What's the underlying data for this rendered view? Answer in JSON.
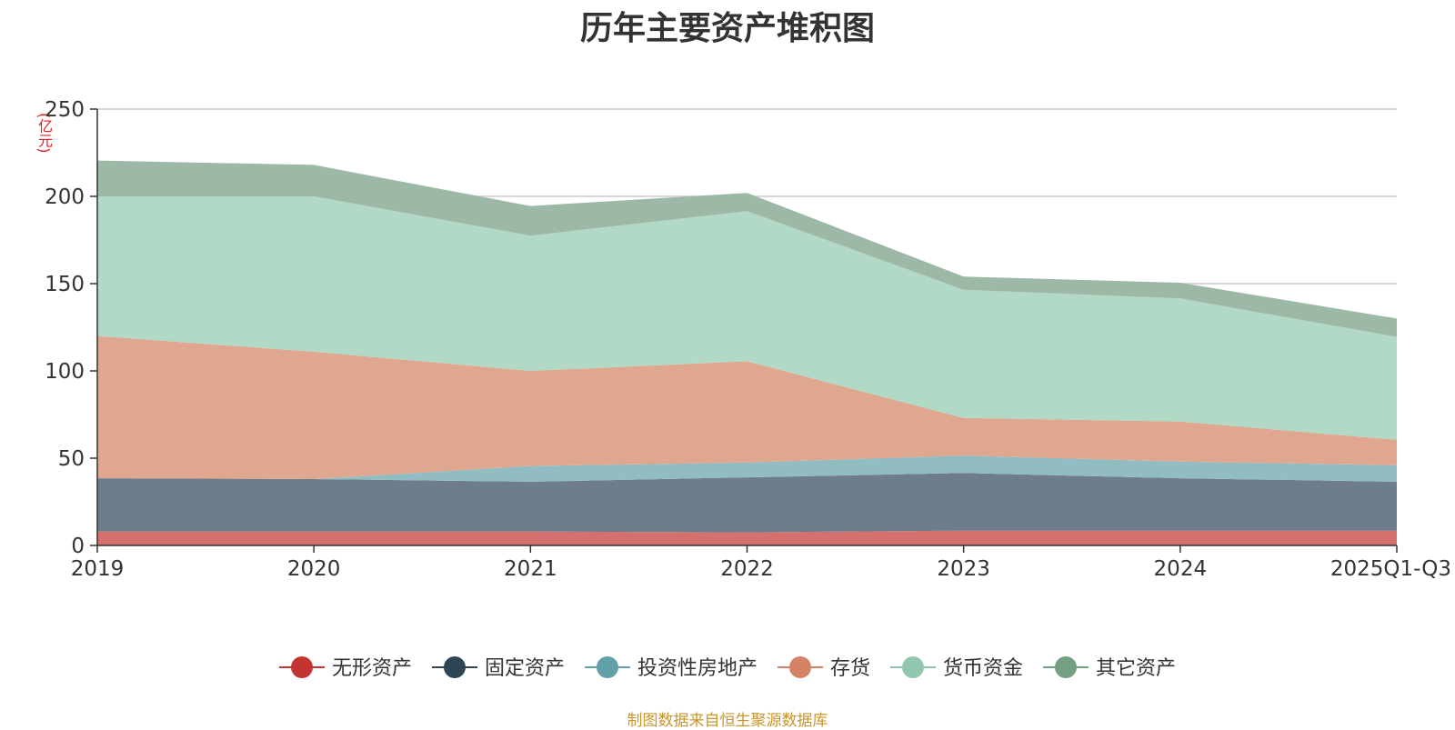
{
  "chart_data": {
    "type": "area",
    "stacked": true,
    "title": "历年主要资产堆积图",
    "unit_label": "(亿元)",
    "source": "制图数据来自恒生聚源数据库",
    "categories": [
      "2019",
      "2020",
      "2021",
      "2022",
      "2023",
      "2024",
      "2025Q1-Q3"
    ],
    "ylim": [
      0,
      250
    ],
    "yticks": [
      0,
      50,
      100,
      150,
      200,
      250
    ],
    "grid": true,
    "legend_position": "bottom",
    "series": [
      {
        "name": "无形资产",
        "color": "#c23531",
        "fill": "#d4716f",
        "values": [
          8,
          8,
          8,
          7.5,
          8.5,
          8.5,
          8.5
        ]
      },
      {
        "name": "固定资产",
        "color": "#2f4554",
        "fill": "#6d7d89",
        "values": [
          30.5,
          30,
          28.5,
          31.5,
          33,
          30,
          28
        ]
      },
      {
        "name": "投资性房地产",
        "color": "#61a0a8",
        "fill": "#90bcc2",
        "values": [
          0,
          0,
          9,
          8.5,
          10,
          9.5,
          9.5
        ]
      },
      {
        "name": "存货",
        "color": "#d48265",
        "fill": "#e0a790",
        "values": [
          81.5,
          73,
          54.5,
          58,
          21.5,
          23,
          14.5
        ]
      },
      {
        "name": "货币资金",
        "color": "#91c7ae",
        "fill": "#b2d8c6",
        "values": [
          80,
          89,
          77.5,
          86,
          73.5,
          70.5,
          59
        ]
      },
      {
        "name": "其它资产",
        "color": "#749f83",
        "fill": "#9db8a6",
        "values": [
          20.5,
          18,
          17,
          10.5,
          7.5,
          9,
          10.5
        ]
      }
    ]
  }
}
